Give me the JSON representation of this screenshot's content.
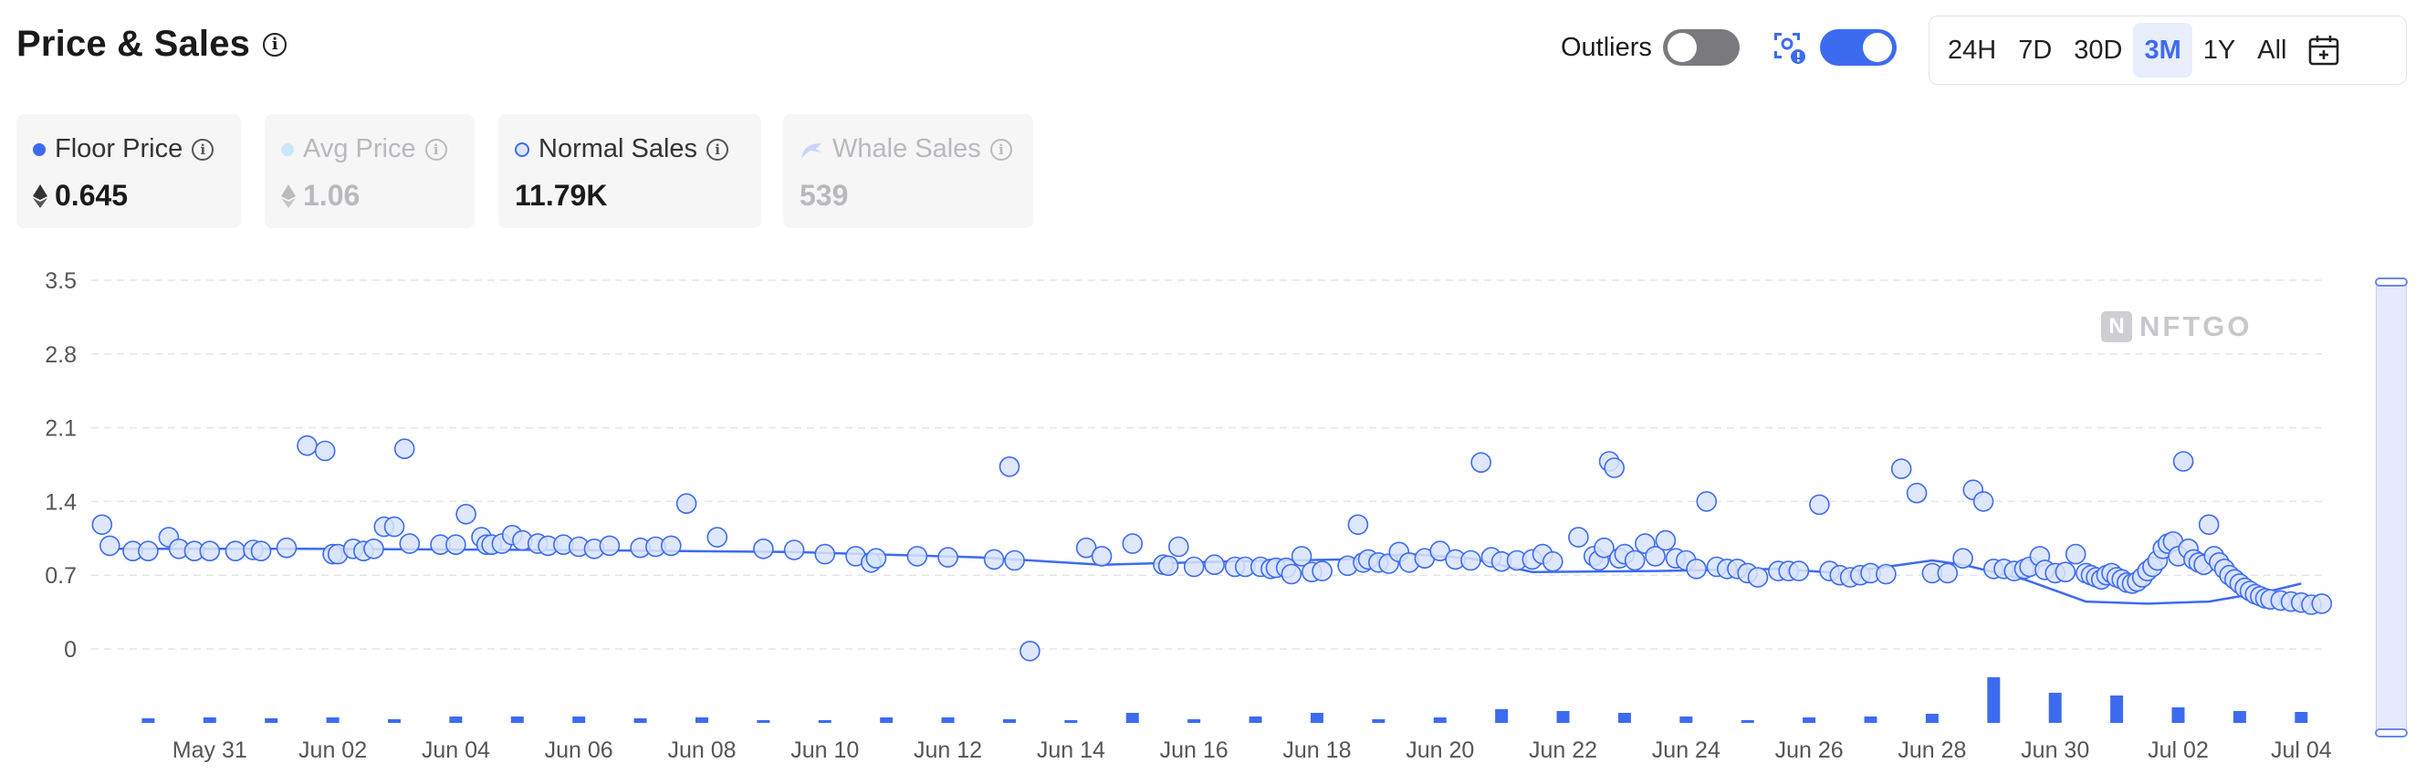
{
  "header": {
    "title": "Price & Sales"
  },
  "controls": {
    "outliers_label": "Outliers",
    "outliers_on": false,
    "marketplace_filter_on": true,
    "ranges": [
      "24H",
      "7D",
      "30D",
      "3M",
      "1Y",
      "All"
    ],
    "active_range": "3M"
  },
  "cards": [
    {
      "label": "Floor Price",
      "value": "0.645",
      "eth": true,
      "active": true
    },
    {
      "label": "Avg Price",
      "value": "1.06",
      "eth": true,
      "active": false
    },
    {
      "label": "Normal Sales",
      "value": "11.79K",
      "eth": false,
      "active": true
    },
    {
      "label": "Whale Sales",
      "value": "539",
      "eth": false,
      "active": false
    }
  ],
  "watermark": "NFTGO",
  "colors": {
    "accent": "#3d6bf0",
    "grid": "#e4e5ea",
    "axis_text": "#555555",
    "scatter_fill": "#d8e3fd"
  },
  "chart_data": {
    "type": "scatter",
    "y_ticks": [
      "3.5",
      "2.8",
      "2.1",
      "1.4",
      "0.7",
      "0"
    ],
    "ylim": [
      0,
      3.5
    ],
    "x_ticks": [
      "May 31",
      "Jun 02",
      "Jun 04",
      "Jun 06",
      "Jun 08",
      "Jun 10",
      "Jun 12",
      "Jun 14",
      "Jun 16",
      "Jun 18",
      "Jun 20",
      "Jun 22",
      "Jun 24",
      "Jun 26",
      "Jun 28",
      "Jun 30",
      "Jul 02",
      "Jul 04"
    ],
    "x_start": "2022-05-29T12:00",
    "x_end": "2022-07-05T00:00",
    "grid": true,
    "series": [
      {
        "name": "Floor Price",
        "type": "line",
        "points": [
          [
            "2022-05-30",
            0.95
          ],
          [
            "2022-06-02",
            0.95
          ],
          [
            "2022-06-06",
            0.94
          ],
          [
            "2022-06-10",
            0.92
          ],
          [
            "2022-06-13",
            0.87
          ],
          [
            "2022-06-15",
            0.8
          ],
          [
            "2022-06-17",
            0.83
          ],
          [
            "2022-06-19",
            0.85
          ],
          [
            "2022-06-20",
            0.9
          ],
          [
            "2022-06-21",
            0.86
          ],
          [
            "2022-06-22",
            0.73
          ],
          [
            "2022-06-24",
            0.74
          ],
          [
            "2022-06-26",
            0.76
          ],
          [
            "2022-06-27",
            0.72
          ],
          [
            "2022-06-28",
            0.8
          ],
          [
            "2022-06-28T12:00",
            0.84
          ],
          [
            "2022-06-29",
            0.8
          ],
          [
            "2022-06-30",
            0.66
          ],
          [
            "2022-07-01",
            0.45
          ],
          [
            "2022-07-02",
            0.43
          ],
          [
            "2022-07-03",
            0.45
          ],
          [
            "2022-07-04",
            0.55
          ],
          [
            "2022-07-04T12:00",
            0.62
          ]
        ]
      },
      {
        "name": "Normal Sales",
        "type": "scatter",
        "points": [
          [
            "2022-05-29T18:00",
            1.18
          ],
          [
            "2022-05-29T21:00",
            0.98
          ],
          [
            "2022-05-30T06:00",
            0.93
          ],
          [
            "2022-05-30T12:00",
            0.93
          ],
          [
            "2022-05-30T20:00",
            1.06
          ],
          [
            "2022-05-31",
            0.95
          ],
          [
            "2022-05-31T06:00",
            0.93
          ],
          [
            "2022-05-31T12:00",
            0.93
          ],
          [
            "2022-05-31T22:00",
            0.93
          ],
          [
            "2022-06-01T05:00",
            0.94
          ],
          [
            "2022-06-01T08:00",
            0.93
          ],
          [
            "2022-06-01T18:00",
            0.96
          ],
          [
            "2022-06-02T02:00",
            1.93
          ],
          [
            "2022-06-02T09:00",
            1.88
          ],
          [
            "2022-06-02T12:00",
            0.9
          ],
          [
            "2022-06-02T14:00",
            0.9
          ],
          [
            "2022-06-02T20:00",
            0.95
          ],
          [
            "2022-06-03",
            0.93
          ],
          [
            "2022-06-03T04:00",
            0.95
          ],
          [
            "2022-06-03T08:00",
            1.16
          ],
          [
            "2022-06-03T12:00",
            1.16
          ],
          [
            "2022-06-03T16:00",
            1.9
          ],
          [
            "2022-06-03T18:00",
            1.0
          ],
          [
            "2022-06-04T06:00",
            0.99
          ],
          [
            "2022-06-04T12:00",
            0.99
          ],
          [
            "2022-06-04T16:00",
            1.28
          ],
          [
            "2022-06-04T22:00",
            1.06
          ],
          [
            "2022-06-05",
            0.99
          ],
          [
            "2022-06-05T02:00",
            0.99
          ],
          [
            "2022-06-05T06:00",
            1.0
          ],
          [
            "2022-06-05T10:00",
            1.08
          ],
          [
            "2022-06-05T14:00",
            1.03
          ],
          [
            "2022-06-05T20:00",
            1.0
          ],
          [
            "2022-06-06",
            0.98
          ],
          [
            "2022-06-06T06:00",
            0.99
          ],
          [
            "2022-06-06T12:00",
            0.97
          ],
          [
            "2022-06-06T18:00",
            0.95
          ],
          [
            "2022-06-07",
            0.98
          ],
          [
            "2022-06-07T12:00",
            0.96
          ],
          [
            "2022-06-07T18:00",
            0.97
          ],
          [
            "2022-06-08",
            0.98
          ],
          [
            "2022-06-08T06:00",
            1.38
          ],
          [
            "2022-06-08T18:00",
            1.06
          ],
          [
            "2022-06-09T12:00",
            0.95
          ],
          [
            "2022-06-10",
            0.94
          ],
          [
            "2022-06-10T12:00",
            0.9
          ],
          [
            "2022-06-11",
            0.88
          ],
          [
            "2022-06-11T06:00",
            0.82
          ],
          [
            "2022-06-11T08:00",
            0.86
          ],
          [
            "2022-06-12",
            0.88
          ],
          [
            "2022-06-12T12:00",
            0.87
          ],
          [
            "2022-06-13T06:00",
            0.85
          ],
          [
            "2022-06-13T12:00",
            1.73
          ],
          [
            "2022-06-13T14:00",
            0.84
          ],
          [
            "2022-06-13T20:00",
            -0.02
          ],
          [
            "2022-06-14T18:00",
            0.96
          ],
          [
            "2022-06-15",
            0.88
          ],
          [
            "2022-06-15T12:00",
            1.0
          ],
          [
            "2022-06-16",
            0.8
          ],
          [
            "2022-06-16T02:00",
            0.79
          ],
          [
            "2022-06-16T06:00",
            0.97
          ],
          [
            "2022-06-16T12:00",
            0.78
          ],
          [
            "2022-06-16T20:00",
            0.8
          ],
          [
            "2022-06-17T04:00",
            0.78
          ],
          [
            "2022-06-17T08:00",
            0.78
          ],
          [
            "2022-06-17T14:00",
            0.78
          ],
          [
            "2022-06-17T18:00",
            0.76
          ],
          [
            "2022-06-17T20:00",
            0.77
          ],
          [
            "2022-06-18",
            0.77
          ],
          [
            "2022-06-18T02:00",
            0.71
          ],
          [
            "2022-06-18T06:00",
            0.88
          ],
          [
            "2022-06-18T10:00",
            0.73
          ],
          [
            "2022-06-18T14:00",
            0.74
          ],
          [
            "2022-06-19",
            0.79
          ],
          [
            "2022-06-19T04:00",
            1.18
          ],
          [
            "2022-06-19T06:00",
            0.82
          ],
          [
            "2022-06-19T08:00",
            0.85
          ],
          [
            "2022-06-19T12:00",
            0.82
          ],
          [
            "2022-06-19T16:00",
            0.81
          ],
          [
            "2022-06-19T20:00",
            0.92
          ],
          [
            "2022-06-20",
            0.82
          ],
          [
            "2022-06-20T06:00",
            0.86
          ],
          [
            "2022-06-20T12:00",
            0.93
          ],
          [
            "2022-06-20T18:00",
            0.85
          ],
          [
            "2022-06-21",
            0.84
          ],
          [
            "2022-06-21T04:00",
            1.77
          ],
          [
            "2022-06-21T08:00",
            0.87
          ],
          [
            "2022-06-21T12:00",
            0.83
          ],
          [
            "2022-06-21T18:00",
            0.84
          ],
          [
            "2022-06-22",
            0.85
          ],
          [
            "2022-06-22T04:00",
            0.9
          ],
          [
            "2022-06-22T08:00",
            0.83
          ],
          [
            "2022-06-22T18:00",
            1.06
          ],
          [
            "2022-06-23",
            0.88
          ],
          [
            "2022-06-23T02:00",
            0.84
          ],
          [
            "2022-06-23T04:00",
            0.96
          ],
          [
            "2022-06-23T06:00",
            1.78
          ],
          [
            "2022-06-23T08:00",
            1.72
          ],
          [
            "2022-06-23T10:00",
            0.86
          ],
          [
            "2022-06-23T12:00",
            0.9
          ],
          [
            "2022-06-23T16:00",
            0.84
          ],
          [
            "2022-06-23T20:00",
            1.0
          ],
          [
            "2022-06-24",
            0.88
          ],
          [
            "2022-06-24T04:00",
            1.03
          ],
          [
            "2022-06-24T08:00",
            0.86
          ],
          [
            "2022-06-24T12:00",
            0.84
          ],
          [
            "2022-06-24T16:00",
            0.76
          ],
          [
            "2022-06-24T20:00",
            1.4
          ],
          [
            "2022-06-25",
            0.78
          ],
          [
            "2022-06-25T04:00",
            0.76
          ],
          [
            "2022-06-25T08:00",
            0.76
          ],
          [
            "2022-06-25T12:00",
            0.72
          ],
          [
            "2022-06-25T16:00",
            0.68
          ],
          [
            "2022-06-26",
            0.74
          ],
          [
            "2022-06-26T04:00",
            0.74
          ],
          [
            "2022-06-26T08:00",
            0.74
          ],
          [
            "2022-06-26T16:00",
            1.37
          ],
          [
            "2022-06-26T20:00",
            0.74
          ],
          [
            "2022-06-27",
            0.7
          ],
          [
            "2022-06-27T04:00",
            0.68
          ],
          [
            "2022-06-27T08:00",
            0.7
          ],
          [
            "2022-06-27T12:00",
            0.72
          ],
          [
            "2022-06-27T18:00",
            0.71
          ],
          [
            "2022-06-28",
            1.71
          ],
          [
            "2022-06-28T06:00",
            1.48
          ],
          [
            "2022-06-28T12:00",
            0.72
          ],
          [
            "2022-06-28T18:00",
            0.72
          ],
          [
            "2022-06-29",
            0.86
          ],
          [
            "2022-06-29T04:00",
            1.51
          ],
          [
            "2022-06-29T08:00",
            1.4
          ],
          [
            "2022-06-29T12:00",
            0.76
          ],
          [
            "2022-06-29T16:00",
            0.76
          ],
          [
            "2022-06-29T20:00",
            0.74
          ],
          [
            "2022-06-30",
            0.76
          ],
          [
            "2022-06-30T02:00",
            0.78
          ],
          [
            "2022-06-30T06:00",
            0.88
          ],
          [
            "2022-06-30T08:00",
            0.75
          ],
          [
            "2022-06-30T12:00",
            0.72
          ],
          [
            "2022-06-30T16:00",
            0.73
          ],
          [
            "2022-06-30T20:00",
            0.9
          ],
          [
            "2022-07-01",
            0.72
          ],
          [
            "2022-07-01T02:00",
            0.7
          ],
          [
            "2022-07-01T04:00",
            0.68
          ],
          [
            "2022-07-01T06:00",
            0.66
          ],
          [
            "2022-07-01T08:00",
            0.7
          ],
          [
            "2022-07-01T10:00",
            0.72
          ],
          [
            "2022-07-01T12:00",
            0.68
          ],
          [
            "2022-07-01T14:00",
            0.66
          ],
          [
            "2022-07-01T16:00",
            0.63
          ],
          [
            "2022-07-01T18:00",
            0.62
          ],
          [
            "2022-07-01T20:00",
            0.64
          ],
          [
            "2022-07-01T22:00",
            0.68
          ],
          [
            "2022-07-02",
            0.74
          ],
          [
            "2022-07-02T02:00",
            0.78
          ],
          [
            "2022-07-02T04:00",
            0.84
          ],
          [
            "2022-07-02T06:00",
            0.95
          ],
          [
            "2022-07-02T08:00",
            1.0
          ],
          [
            "2022-07-02T10:00",
            1.02
          ],
          [
            "2022-07-02T12:00",
            0.88
          ],
          [
            "2022-07-02T14:00",
            1.78
          ],
          [
            "2022-07-02T16:00",
            0.95
          ],
          [
            "2022-07-02T18:00",
            0.85
          ],
          [
            "2022-07-02T20:00",
            0.82
          ],
          [
            "2022-07-02T22:00",
            0.8
          ],
          [
            "2022-07-03",
            1.18
          ],
          [
            "2022-07-03T02:00",
            0.88
          ],
          [
            "2022-07-03T04:00",
            0.82
          ],
          [
            "2022-07-03T06:00",
            0.76
          ],
          [
            "2022-07-03T08:00",
            0.7
          ],
          [
            "2022-07-03T10:00",
            0.66
          ],
          [
            "2022-07-03T12:00",
            0.62
          ],
          [
            "2022-07-03T14:00",
            0.58
          ],
          [
            "2022-07-03T16:00",
            0.55
          ],
          [
            "2022-07-03T18:00",
            0.52
          ],
          [
            "2022-07-03T20:00",
            0.5
          ],
          [
            "2022-07-03T22:00",
            0.48
          ],
          [
            "2022-07-04",
            0.47
          ],
          [
            "2022-07-04T04:00",
            0.46
          ],
          [
            "2022-07-04T08:00",
            0.45
          ],
          [
            "2022-07-04T12:00",
            0.44
          ],
          [
            "2022-07-04T16:00",
            0.42
          ],
          [
            "2022-07-04T20:00",
            0.43
          ]
        ]
      },
      {
        "name": "Volume",
        "type": "bar",
        "points": [
          [
            "2022-05-30",
            0.1
          ],
          [
            "2022-05-31",
            0.12
          ],
          [
            "2022-06-01",
            0.1
          ],
          [
            "2022-06-02",
            0.12
          ],
          [
            "2022-06-03",
            0.08
          ],
          [
            "2022-06-04",
            0.14
          ],
          [
            "2022-06-05",
            0.14
          ],
          [
            "2022-06-06",
            0.14
          ],
          [
            "2022-06-07",
            0.1
          ],
          [
            "2022-06-08",
            0.12
          ],
          [
            "2022-06-09",
            0.06
          ],
          [
            "2022-06-10",
            0.06
          ],
          [
            "2022-06-11",
            0.12
          ],
          [
            "2022-06-12",
            0.12
          ],
          [
            "2022-06-13",
            0.08
          ],
          [
            "2022-06-14",
            0.06
          ],
          [
            "2022-06-15",
            0.22
          ],
          [
            "2022-06-16",
            0.08
          ],
          [
            "2022-06-17",
            0.14
          ],
          [
            "2022-06-18",
            0.22
          ],
          [
            "2022-06-19",
            0.08
          ],
          [
            "2022-06-20",
            0.12
          ],
          [
            "2022-06-21",
            0.3
          ],
          [
            "2022-06-22",
            0.26
          ],
          [
            "2022-06-23",
            0.22
          ],
          [
            "2022-06-24",
            0.14
          ],
          [
            "2022-06-25",
            0.06
          ],
          [
            "2022-06-26",
            0.12
          ],
          [
            "2022-06-27",
            0.14
          ],
          [
            "2022-06-28",
            0.2
          ],
          [
            "2022-06-29",
            1.0
          ],
          [
            "2022-06-30",
            0.66
          ],
          [
            "2022-07-01",
            0.6
          ],
          [
            "2022-07-02",
            0.34
          ],
          [
            "2022-07-03",
            0.26
          ],
          [
            "2022-07-04",
            0.24
          ]
        ]
      }
    ]
  }
}
